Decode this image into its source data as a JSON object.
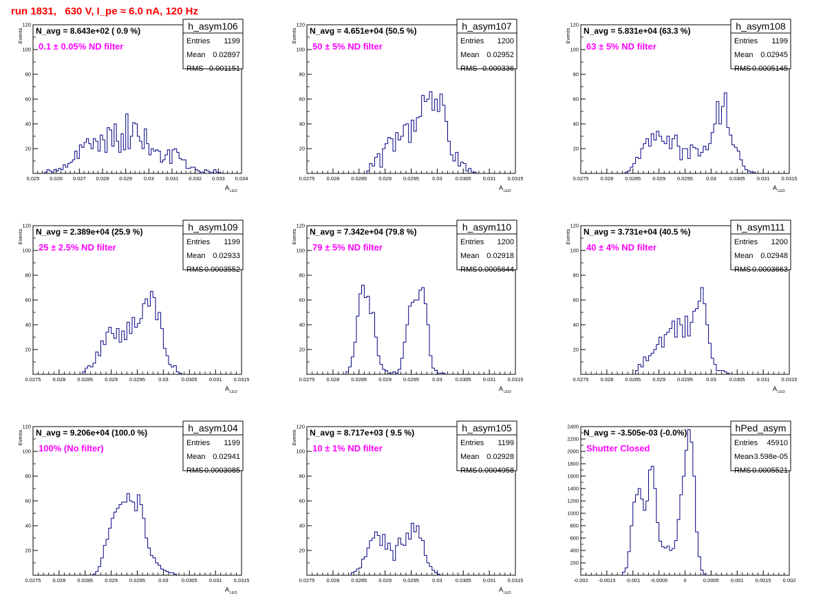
{
  "run_title": "run 1831,   630 V, I_pe ≈ 6.0 nA, 120 Hz",
  "colors": {
    "hist": "#000080",
    "annotation": "#ff00ff",
    "title": "#ff0000",
    "axis": "#000000"
  },
  "stat_labels": {
    "entries": "Entries",
    "mean": "Mean",
    "rms": "RMS"
  },
  "chart_data": [
    {
      "type": "histogram",
      "name": "h_asym106",
      "navg": "N_avg = 8.643e+02 ( 0.9 %)",
      "note": "0.1 ± 0.05% ND filter",
      "entries": "1199",
      "mean": "0.02897",
      "rms": "0.001151",
      "xlabel": "A",
      "xlabel_sub": "LED",
      "ylabel": "Events",
      "xlim": [
        0.025,
        0.034
      ],
      "ylim": [
        0,
        120
      ],
      "xticks": [
        "0.025",
        "0.026",
        "0.027",
        "0.028",
        "0.029",
        "0.03",
        "0.031",
        "0.032",
        "0.033",
        "0.034"
      ],
      "yticks": [
        "20",
        "40",
        "60",
        "80",
        "100",
        "120"
      ],
      "x_start": 0.0255,
      "bin_width": 0.0001,
      "values": [
        1,
        3,
        2,
        1,
        3,
        2,
        4,
        3,
        7,
        5,
        8,
        9,
        11,
        18,
        12,
        23,
        21,
        25,
        28,
        24,
        20,
        28,
        26,
        18,
        31,
        27,
        17,
        37,
        35,
        22,
        40,
        26,
        17,
        32,
        19,
        48,
        20,
        30,
        41,
        40,
        30,
        26,
        20,
        36,
        24,
        15,
        20,
        18,
        19,
        18,
        9,
        11,
        15,
        19,
        8,
        19,
        20,
        17,
        12,
        11,
        11,
        4,
        4,
        5,
        5,
        3,
        2,
        1,
        1,
        3,
        2,
        1,
        1,
        3,
        1,
        1
      ]
    },
    {
      "type": "histogram",
      "name": "h_asym107",
      "navg": "N_avg = 4.651e+04 (50.5 %)",
      "note": "50 ± 5% ND filter",
      "entries": "1200",
      "mean": "0.02952",
      "rms": "0.000336",
      "xlabel": "A",
      "xlabel_sub": "LED",
      "ylabel": "Events",
      "xlim": [
        0.0275,
        0.0315
      ],
      "ylim": [
        0,
        120
      ],
      "xticks": [
        "0.0275",
        "0.028",
        "0.0285",
        "0.029",
        "0.0295",
        "0.03",
        "0.0305",
        "0.031",
        "0.0315"
      ],
      "yticks": [
        "20",
        "40",
        "60",
        "80",
        "100",
        "120"
      ],
      "x_start": 0.02865,
      "bin_width": 5e-05,
      "values": [
        2,
        8,
        6,
        13,
        16,
        5,
        20,
        24,
        29,
        28,
        18,
        33,
        27,
        30,
        39,
        40,
        25,
        43,
        34,
        45,
        46,
        63,
        58,
        60,
        66,
        51,
        60,
        50,
        64,
        55,
        42,
        26,
        15,
        10,
        17,
        6,
        9,
        8,
        2,
        4,
        1,
        1
      ]
    },
    {
      "type": "histogram",
      "name": "h_asym108",
      "navg": "N_avg = 5.831e+04 (63.3 %)",
      "note": "63 ± 5% ND filter",
      "entries": "1199",
      "mean": "0.02945",
      "rms": "0.0005145",
      "xlabel": "A",
      "xlabel_sub": "LED",
      "ylabel": "Events",
      "xlim": [
        0.0275,
        0.0315
      ],
      "ylim": [
        0,
        120
      ],
      "xticks": [
        "0.0275",
        "0.028",
        "0.0285",
        "0.029",
        "0.0295",
        "0.03",
        "0.0305",
        "0.031",
        "0.0315"
      ],
      "yticks": [
        "20",
        "40",
        "60",
        "80",
        "100",
        "120"
      ],
      "x_start": 0.02835,
      "bin_width": 5e-05,
      "values": [
        1,
        2,
        5,
        8,
        13,
        12,
        20,
        24,
        28,
        22,
        32,
        27,
        34,
        30,
        26,
        24,
        30,
        20,
        28,
        31,
        22,
        11,
        20,
        20,
        12,
        23,
        21,
        20,
        14,
        17,
        22,
        19,
        24,
        33,
        40,
        58,
        40,
        54,
        65,
        37,
        31,
        23,
        21,
        18,
        11,
        6,
        3,
        2,
        1,
        1
      ]
    },
    {
      "type": "histogram",
      "name": "h_asym109",
      "navg": "N_avg = 2.389e+04 (25.9 %)",
      "note": "25 ± 2.5% ND filter",
      "entries": "1199",
      "mean": "0.02933",
      "rms": "0.0003552",
      "xlabel": "A",
      "xlabel_sub": "LED",
      "ylabel": "Events",
      "xlim": [
        0.0275,
        0.0315
      ],
      "ylim": [
        0,
        120
      ],
      "xticks": [
        "0.0275",
        "0.028",
        "0.0285",
        "0.029",
        "0.0295",
        "0.03",
        "0.0305",
        "0.031",
        "0.0315"
      ],
      "yticks": [
        "20",
        "40",
        "60",
        "80",
        "100",
        "120"
      ],
      "x_start": 0.02845,
      "bin_width": 5e-05,
      "values": [
        2,
        5,
        7,
        6,
        9,
        18,
        15,
        27,
        24,
        34,
        38,
        33,
        29,
        37,
        26,
        35,
        28,
        42,
        33,
        46,
        38,
        41,
        45,
        57,
        61,
        55,
        67,
        62,
        44,
        50,
        37,
        21,
        15,
        8,
        6,
        7,
        2,
        1
      ]
    },
    {
      "type": "histogram",
      "name": "h_asym110",
      "navg": "N_avg = 7.342e+04 (79.8 %)",
      "note": "79 ± 5% ND filter",
      "entries": "1200",
      "mean": "0.02918",
      "rms": "0.0005644",
      "xlabel": "A",
      "xlabel_sub": "LED",
      "ylabel": "Events",
      "xlim": [
        0.0275,
        0.0315
      ],
      "ylim": [
        0,
        120
      ],
      "xticks": [
        "0.0275",
        "0.028",
        "0.0285",
        "0.029",
        "0.0295",
        "0.03",
        "0.0305",
        "0.031",
        "0.0315"
      ],
      "yticks": [
        "20",
        "40",
        "60",
        "80",
        "100",
        "120"
      ],
      "x_start": 0.02825,
      "bin_width": 5e-05,
      "values": [
        2,
        6,
        14,
        26,
        47,
        65,
        72,
        62,
        63,
        49,
        50,
        30,
        15,
        8,
        4,
        3,
        1,
        1,
        2,
        1,
        4,
        13,
        26,
        40,
        55,
        58,
        60,
        60,
        68,
        70,
        57,
        40,
        15,
        5,
        3,
        1,
        1,
        1
      ]
    },
    {
      "type": "histogram",
      "name": "h_asym111",
      "navg": "N_avg = 3.731e+04 (40.5 %)",
      "note": "40 ± 4% ND filter",
      "entries": "1200",
      "mean": "0.02948",
      "rms": "0.0003663",
      "xlabel": "A",
      "xlabel_sub": "LED",
      "ylabel": "Events",
      "xlim": [
        0.0275,
        0.0315
      ],
      "ylim": [
        0,
        120
      ],
      "xticks": [
        "0.0275",
        "0.028",
        "0.0285",
        "0.029",
        "0.0295",
        "0.03",
        "0.0305",
        "0.031",
        "0.0315"
      ],
      "yticks": [
        "20",
        "40",
        "60",
        "80",
        "100",
        "120"
      ],
      "x_start": 0.02855,
      "bin_width": 5e-05,
      "values": [
        3,
        8,
        6,
        14,
        11,
        15,
        17,
        20,
        24,
        30,
        22,
        32,
        34,
        37,
        43,
        30,
        45,
        40,
        30,
        47,
        31,
        42,
        51,
        53,
        59,
        70,
        57,
        40,
        25,
        13,
        8,
        3,
        3,
        3,
        2,
        1
      ]
    },
    {
      "type": "histogram",
      "name": "h_asym104",
      "navg": "N_avg = 9.206e+04 (100.0 %)",
      "note": "100% (No filter)",
      "entries": "1199",
      "mean": "0.02941",
      "rms": "0.0003085",
      "xlabel": "A",
      "xlabel_sub": "LED",
      "ylabel": "Events",
      "xlim": [
        0.0275,
        0.0315
      ],
      "ylim": [
        0,
        120
      ],
      "xticks": [
        "0.0275",
        "0.028",
        "0.0285",
        "0.029",
        "0.0295",
        "0.03",
        "0.0305",
        "0.031",
        "0.0315"
      ],
      "yticks": [
        "20",
        "40",
        "60",
        "80",
        "100",
        "120"
      ],
      "x_start": 0.02865,
      "bin_width": 5e-05,
      "values": [
        1,
        3,
        7,
        14,
        24,
        29,
        38,
        46,
        51,
        54,
        57,
        59,
        59,
        66,
        60,
        59,
        52,
        65,
        57,
        46,
        30,
        22,
        16,
        14,
        10,
        8,
        5,
        4,
        3,
        2,
        2,
        1
      ]
    },
    {
      "type": "histogram",
      "name": "h_asym105",
      "navg": "N_avg = 8.717e+03 ( 9.5 %)",
      "note": "10 ± 1% ND filter",
      "entries": "1199",
      "mean": "0.02928",
      "rms": "0.0004958",
      "xlabel": "A",
      "xlabel_sub": "LED",
      "ylabel": "Events",
      "xlim": [
        0.0275,
        0.0315
      ],
      "ylim": [
        0,
        120
      ],
      "xticks": [
        "0.0275",
        "0.028",
        "0.0285",
        "0.029",
        "0.0295",
        "0.03",
        "0.0305",
        "0.031",
        "0.0315"
      ],
      "yticks": [
        "20",
        "40",
        "60",
        "80",
        "100",
        "120"
      ],
      "x_start": 0.02835,
      "bin_width": 5e-05,
      "values": [
        2,
        3,
        5,
        6,
        13,
        15,
        22,
        28,
        30,
        35,
        32,
        24,
        33,
        21,
        26,
        20,
        12,
        24,
        30,
        25,
        24,
        34,
        29,
        42,
        35,
        40,
        30,
        28,
        16,
        10,
        7,
        4,
        2,
        1
      ]
    },
    {
      "type": "histogram",
      "name": "hPed_asym",
      "navg": "N_avg = -3.505e-03 (-0.0%)",
      "note": "Shutter Closed",
      "entries": "45910",
      "mean": "-3.598e-05",
      "rms": "0.0005521",
      "xlabel": "",
      "xlabel_sub": "",
      "ylabel": "",
      "xlim": [
        -0.002,
        0.002
      ],
      "ylim": [
        0,
        2400
      ],
      "xticks": [
        "-0.002",
        "-0.0015",
        "-0.001",
        "-0.0005",
        "0",
        "0.0005",
        "0.001",
        "0.0015",
        "0.002"
      ],
      "yticks": [
        "200",
        "400",
        "600",
        "800",
        "1000",
        "1200",
        "1400",
        "1600",
        "1800",
        "2000",
        "2200",
        "2400"
      ],
      "x_start": -0.0012,
      "bin_width": 5e-05,
      "values": [
        50,
        120,
        380,
        800,
        1180,
        1300,
        1400,
        1230,
        1050,
        1200,
        1700,
        1760,
        1400,
        850,
        550,
        460,
        440,
        470,
        400,
        430,
        560,
        900,
        1300,
        1600,
        2020,
        2350,
        2150,
        1600,
        700,
        300,
        80,
        20
      ]
    }
  ]
}
